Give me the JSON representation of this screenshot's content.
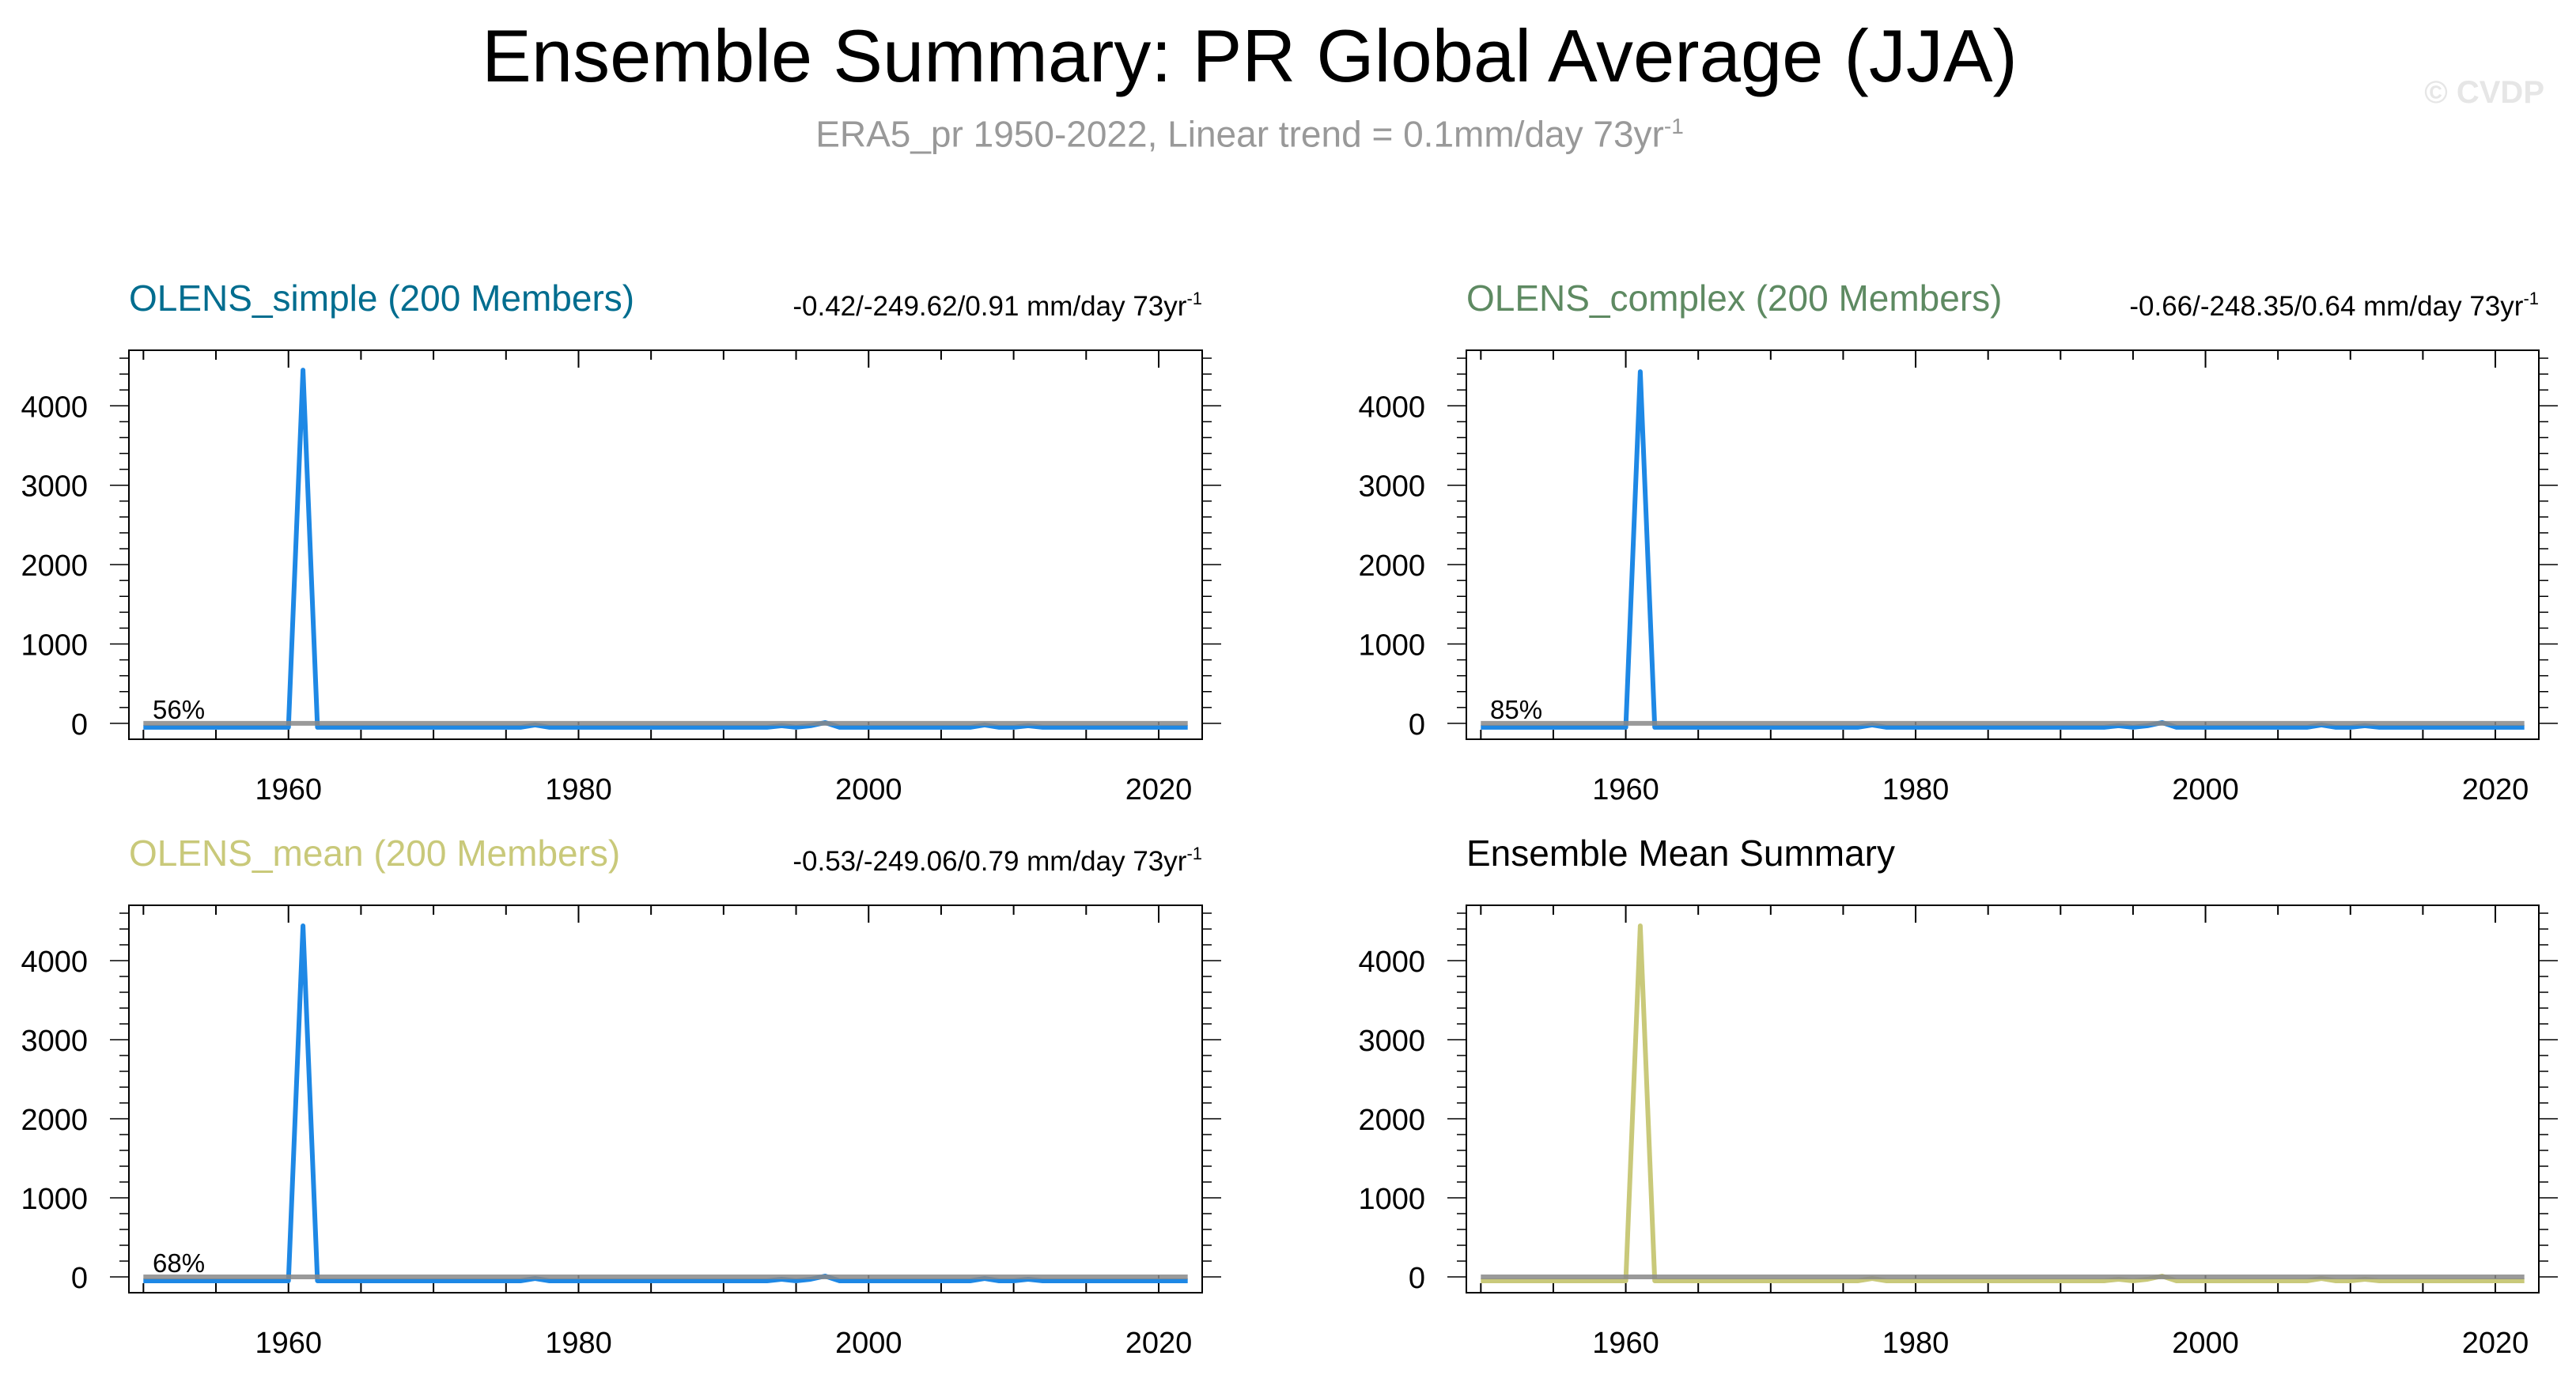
{
  "title": "Ensemble Summary: PR Global Average (JJA)",
  "subtitle": {
    "text": "ERA5_pr 1950-2022, Linear trend = 0.1mm/day 73yr",
    "superscript": "-1"
  },
  "watermark": "© CVDP",
  "colors": {
    "olens_simple": "#006d8f",
    "olens_complex": "#5e8a62",
    "olens_mean": "#c9c97a",
    "line_blue": "#1e88e5",
    "ref_gray": "#888888",
    "subtitle_gray": "#999999"
  },
  "chart_data": [
    {
      "type": "line",
      "title": "OLENS_simple (200 Members)",
      "title_color": "#006d8f",
      "stats": "-0.42/-249.62/0.91 mm/day 73yr",
      "stats_sup": "-1",
      "percent": "56%",
      "xlim": [
        1949,
        2023
      ],
      "ylim": [
        -200,
        4700
      ],
      "xticks": [
        "1960",
        "1980",
        "2000",
        "2020"
      ],
      "yticks": [
        "0",
        "1000",
        "2000",
        "3000",
        "4000"
      ],
      "series": [
        {
          "color": "#1e88e5",
          "x": [
            1950,
            1960,
            1961,
            1962,
            1976,
            1977,
            1978,
            1993,
            1994,
            1995,
            1996,
            1997,
            1998,
            2007,
            2008,
            2009,
            2010,
            2011,
            2012,
            2022
          ],
          "y": [
            -50,
            -50,
            4450,
            -50,
            -50,
            -20,
            -50,
            -50,
            -30,
            -50,
            -30,
            10,
            -50,
            -50,
            -20,
            -50,
            -50,
            -30,
            -50,
            -50
          ]
        },
        {
          "color": "#888888",
          "x": [
            1950,
            2022
          ],
          "y": [
            0,
            0
          ]
        }
      ]
    },
    {
      "type": "line",
      "title": "OLENS_complex (200 Members)",
      "title_color": "#5e8a62",
      "stats": "-0.66/-248.35/0.64 mm/day 73yr",
      "stats_sup": "-1",
      "percent": "85%",
      "xlim": [
        1949,
        2023
      ],
      "ylim": [
        -200,
        4700
      ],
      "xticks": [
        "1960",
        "1980",
        "2000",
        "2020"
      ],
      "yticks": [
        "0",
        "1000",
        "2000",
        "3000",
        "4000"
      ],
      "series": [
        {
          "color": "#1e88e5",
          "x": [
            1950,
            1960,
            1961,
            1962,
            1976,
            1977,
            1978,
            1993,
            1994,
            1995,
            1996,
            1997,
            1998,
            2007,
            2008,
            2009,
            2010,
            2011,
            2012,
            2022
          ],
          "y": [
            -50,
            -50,
            4430,
            -50,
            -50,
            -20,
            -50,
            -50,
            -30,
            -50,
            -30,
            10,
            -50,
            -50,
            -20,
            -50,
            -50,
            -30,
            -50,
            -50
          ]
        },
        {
          "color": "#888888",
          "x": [
            1950,
            2022
          ],
          "y": [
            0,
            0
          ]
        }
      ]
    },
    {
      "type": "line",
      "title": "OLENS_mean (200 Members)",
      "title_color": "#c9c97a",
      "stats": "-0.53/-249.06/0.79 mm/day 73yr",
      "stats_sup": "-1",
      "percent": "68%",
      "xlim": [
        1949,
        2023
      ],
      "ylim": [
        -200,
        4700
      ],
      "xticks": [
        "1960",
        "1980",
        "2000",
        "2020"
      ],
      "yticks": [
        "0",
        "1000",
        "2000",
        "3000",
        "4000"
      ],
      "series": [
        {
          "color": "#1e88e5",
          "x": [
            1950,
            1960,
            1961,
            1962,
            1976,
            1977,
            1978,
            1993,
            1994,
            1995,
            1996,
            1997,
            1998,
            2007,
            2008,
            2009,
            2010,
            2011,
            2012,
            2022
          ],
          "y": [
            -50,
            -50,
            4440,
            -50,
            -50,
            -20,
            -50,
            -50,
            -30,
            -50,
            -30,
            10,
            -50,
            -50,
            -20,
            -50,
            -50,
            -30,
            -50,
            -50
          ]
        },
        {
          "color": "#888888",
          "x": [
            1950,
            2022
          ],
          "y": [
            0,
            0
          ]
        }
      ]
    },
    {
      "type": "line",
      "title": "Ensemble Mean Summary",
      "title_color": "#000000",
      "stats": "",
      "stats_sup": "",
      "percent": "",
      "xlim": [
        1949,
        2023
      ],
      "ylim": [
        -200,
        4700
      ],
      "xticks": [
        "1960",
        "1980",
        "2000",
        "2020"
      ],
      "yticks": [
        "0",
        "1000",
        "2000",
        "3000",
        "4000"
      ],
      "series": [
        {
          "color": "#c9c97a",
          "x": [
            1950,
            1960,
            1961,
            1962,
            1976,
            1977,
            1978,
            1993,
            1994,
            1995,
            1996,
            1997,
            1998,
            2007,
            2008,
            2009,
            2010,
            2011,
            2012,
            2022
          ],
          "y": [
            -50,
            -50,
            4440,
            -50,
            -50,
            -20,
            -50,
            -50,
            -30,
            -50,
            -30,
            10,
            -50,
            -50,
            -20,
            -50,
            -50,
            -30,
            -50,
            -50
          ]
        },
        {
          "color": "#888888",
          "x": [
            1950,
            2022
          ],
          "y": [
            0,
            0
          ]
        }
      ]
    }
  ]
}
